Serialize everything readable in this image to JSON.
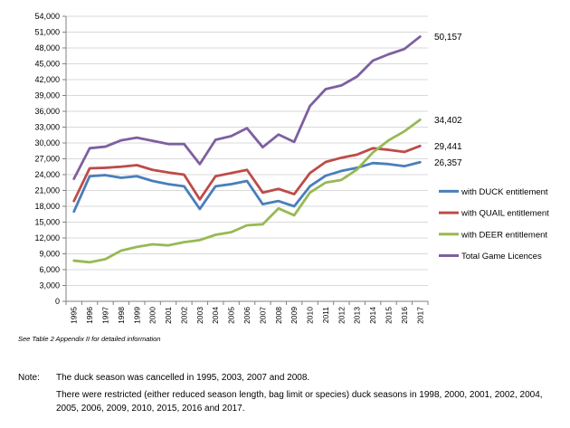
{
  "chart_data": {
    "type": "line",
    "title": "",
    "xlabel": "",
    "ylabel": "",
    "ylim": [
      0,
      54000
    ],
    "yticks": [
      0,
      3000,
      6000,
      9000,
      12000,
      15000,
      18000,
      21000,
      24000,
      27000,
      30000,
      33000,
      36000,
      39000,
      42000,
      45000,
      48000,
      51000,
      54000
    ],
    "ytick_labels": [
      "0",
      "3,000",
      "6,000",
      "9,000",
      "12,000",
      "15,000",
      "18,000",
      "21,000",
      "24,000",
      "27,000",
      "30,000",
      "33,000",
      "36,000",
      "39,000",
      "42,000",
      "45,000",
      "48,000",
      "51,000",
      "54,000"
    ],
    "categories": [
      "1995",
      "1996",
      "1997",
      "1998",
      "1999",
      "2000",
      "2001",
      "2002",
      "2003",
      "2004",
      "2005",
      "2006",
      "2007",
      "2008",
      "2009",
      "2010",
      "2011",
      "2012",
      "2013",
      "2014",
      "2015",
      "2016",
      "2017"
    ],
    "grid": "horizontal",
    "legend_position": "right",
    "series": [
      {
        "name": "with DUCK entitlement",
        "color": "#4a7ebb",
        "values": [
          17000,
          23700,
          23900,
          23400,
          23700,
          22800,
          22200,
          21800,
          17500,
          21800,
          22200,
          22800,
          18400,
          19000,
          18000,
          21800,
          23800,
          24700,
          25300,
          26200,
          26000,
          25600,
          26357
        ],
        "end_label": "26,357"
      },
      {
        "name": "with QUAIL entitlement",
        "color": "#be4b48",
        "values": [
          19000,
          25200,
          25300,
          25500,
          25800,
          24900,
          24400,
          24000,
          19300,
          23700,
          24300,
          24900,
          20600,
          21300,
          20300,
          24300,
          26400,
          27200,
          27800,
          29000,
          28700,
          28300,
          29441
        ],
        "end_label": "29,441"
      },
      {
        "name": "with DEER entitlement",
        "color": "#98b954",
        "values": [
          7700,
          7400,
          8000,
          9600,
          10300,
          10800,
          10600,
          11200,
          11600,
          12600,
          13100,
          14400,
          14600,
          17600,
          16300,
          20600,
          22500,
          23000,
          25000,
          28200,
          30500,
          32200,
          34402
        ],
        "end_label": "34,402"
      },
      {
        "name": "Total Game Licences",
        "color": "#7d60a0",
        "values": [
          23200,
          29000,
          29300,
          30500,
          31000,
          30400,
          29800,
          29800,
          26000,
          30600,
          31300,
          32800,
          29200,
          31600,
          30200,
          37000,
          40200,
          40900,
          42600,
          45600,
          46800,
          47800,
          50157
        ],
        "end_label": "50,157"
      }
    ]
  },
  "source_note": "See Table 2 Appendix II for detailed information",
  "note": {
    "label": "Note:",
    "line1": "The duck season was cancelled in 1995, 2003, 2007 and 2008.",
    "line2": "There were restricted (either reduced season length, bag limit or species) duck seasons in 1998, 2000, 2001, 2002, 2004, 2005, 2006, 2009, 2010, 2015, 2016 and 2017."
  }
}
